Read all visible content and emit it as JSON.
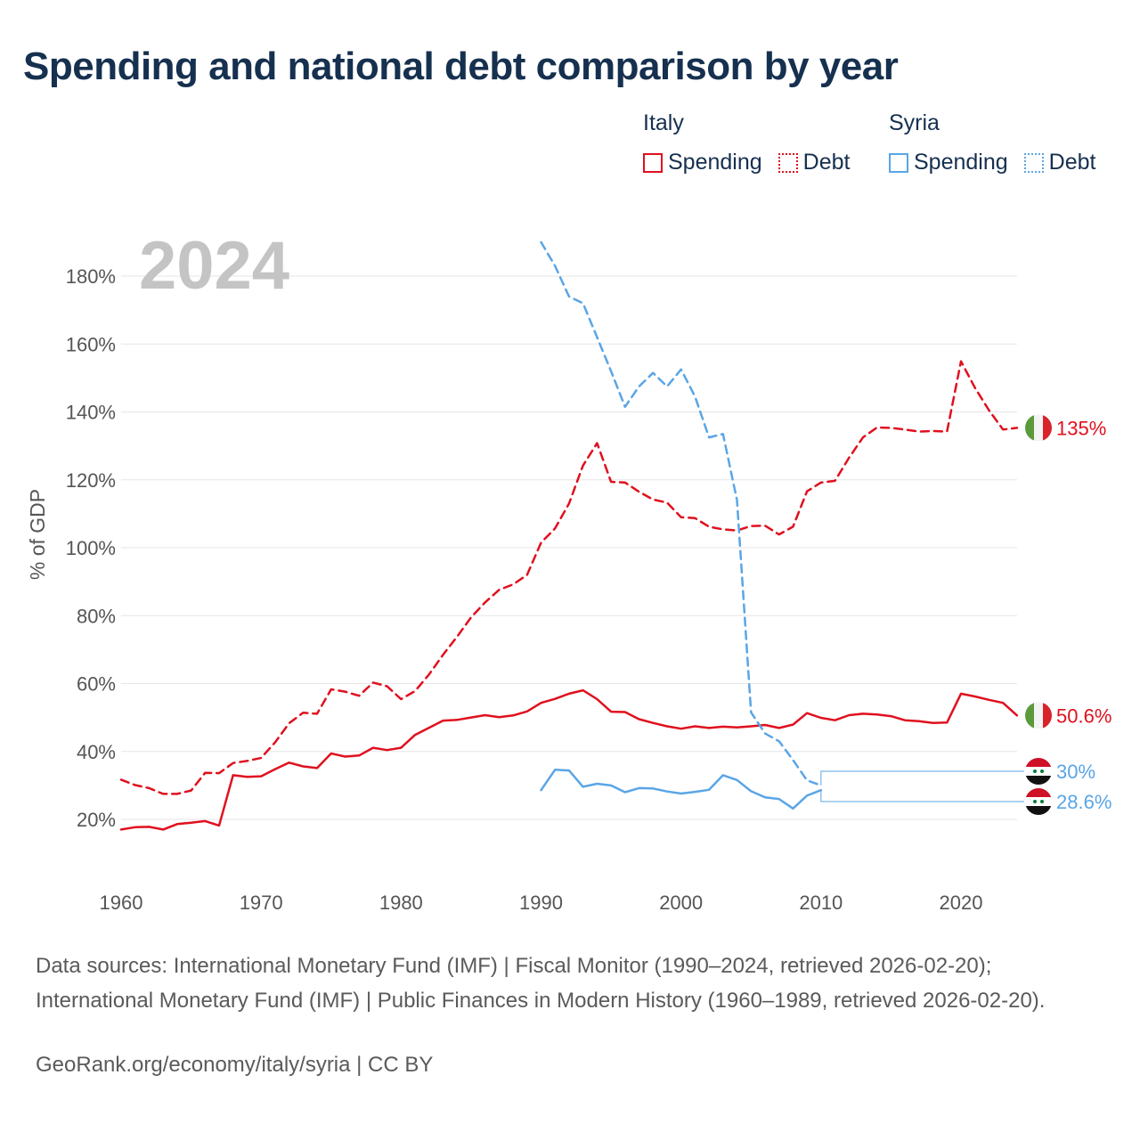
{
  "title": "Spending and national debt comparison by year",
  "legend": {
    "groups": [
      {
        "name": "Italy",
        "items": [
          {
            "label": "Spending",
            "style": "solid",
            "color": "#e0101e"
          },
          {
            "label": "Debt",
            "style": "dotted",
            "color": "#e0101e"
          }
        ]
      },
      {
        "name": "Syria",
        "items": [
          {
            "label": "Spending",
            "style": "solid",
            "color": "#5aa5e6"
          },
          {
            "label": "Debt",
            "style": "dotted",
            "color": "#5aa5e6"
          }
        ]
      }
    ]
  },
  "year_label": "2024",
  "sources": "Data sources: International Monetary Fund (IMF) | Fiscal Monitor (1990–2024, retrieved 2026-02-20); International Monetary Fund (IMF) | Public Finances in Modern History (1960–1989, retrieved 2026-02-20).",
  "credit": "GeoRank.org/economy/italy/syria | CC BY",
  "colors": {
    "italy": "#e0101e",
    "syria": "#5aa5e6",
    "title": "#16304f",
    "grid": "#e6e6e6",
    "axis_text": "#555555",
    "year_watermark": "#c4c4c4"
  },
  "chart_data": {
    "type": "line",
    "title": "Spending and national debt comparison by year",
    "xlabel": "",
    "ylabel": "% of GDP",
    "xlim": [
      1960,
      2024
    ],
    "ylim": [
      10,
      190
    ],
    "x_ticks": [
      1960,
      1970,
      1980,
      1990,
      2000,
      2010,
      2020
    ],
    "x_tick_labels": [
      "1960",
      "1970",
      "1980",
      "1990",
      "2000",
      "2010",
      "2020"
    ],
    "y_ticks": [
      20,
      40,
      60,
      80,
      100,
      120,
      140,
      160,
      180
    ],
    "y_tick_labels": [
      "20%",
      "40%",
      "60%",
      "80%",
      "100%",
      "120%",
      "140%",
      "160%",
      "180%"
    ],
    "grid": true,
    "series": [
      {
        "name": "Italy Spending",
        "country": "italy",
        "kind": "spending",
        "color": "#e0101e",
        "end_label": "50.6%",
        "x": [
          1960,
          1961,
          1962,
          1963,
          1964,
          1965,
          1966,
          1967,
          1968,
          1969,
          1970,
          1971,
          1972,
          1973,
          1974,
          1975,
          1976,
          1977,
          1978,
          1979,
          1980,
          1981,
          1982,
          1983,
          1984,
          1985,
          1986,
          1987,
          1988,
          1989,
          1990,
          1991,
          1992,
          1993,
          1994,
          1995,
          1996,
          1997,
          1998,
          1999,
          2000,
          2001,
          2002,
          2003,
          2004,
          2005,
          2006,
          2007,
          2008,
          2009,
          2010,
          2011,
          2012,
          2013,
          2014,
          2015,
          2016,
          2017,
          2018,
          2019,
          2020,
          2021,
          2022,
          2023,
          2024
        ],
        "values": [
          17,
          17.7,
          17.8,
          17,
          18.6,
          19,
          19.5,
          18.2,
          33,
          32.5,
          32.7,
          34.8,
          36.7,
          35.6,
          35.1,
          39.4,
          38.5,
          38.8,
          41.1,
          40.4,
          41.1,
          44.9,
          47,
          49.1,
          49.3,
          50,
          50.7,
          50.1,
          50.6,
          51.8,
          54.3,
          55.5,
          57,
          58,
          55.4,
          51.7,
          51.6,
          49.5,
          48.4,
          47.4,
          46.7,
          47.4,
          46.9,
          47.3,
          47.1,
          47.4,
          47.8,
          46.9,
          47.9,
          51.3,
          49.9,
          49.2,
          50.7,
          51.1,
          50.9,
          50.4,
          49.2,
          48.9,
          48.4,
          48.5,
          57,
          56.2,
          55.2,
          54.3,
          50.6
        ]
      },
      {
        "name": "Italy Debt",
        "country": "italy",
        "kind": "debt",
        "color": "#e0101e",
        "end_label": "135%",
        "x": [
          1960,
          1961,
          1962,
          1963,
          1964,
          1965,
          1966,
          1967,
          1968,
          1969,
          1970,
          1971,
          1972,
          1973,
          1974,
          1975,
          1976,
          1977,
          1978,
          1979,
          1980,
          1981,
          1982,
          1983,
          1984,
          1985,
          1986,
          1987,
          1988,
          1989,
          1990,
          1991,
          1992,
          1993,
          1994,
          1995,
          1996,
          1997,
          1998,
          1999,
          2000,
          2001,
          2002,
          2003,
          2004,
          2005,
          2006,
          2007,
          2008,
          2009,
          2010,
          2011,
          2012,
          2013,
          2014,
          2015,
          2016,
          2017,
          2018,
          2019,
          2020,
          2021,
          2022,
          2023,
          2024
        ],
        "values": [
          31.7,
          30.1,
          29.2,
          27.5,
          27.5,
          28.5,
          33.7,
          33.6,
          36.6,
          37.2,
          38.1,
          42.7,
          48.3,
          51.4,
          51.1,
          58.3,
          57.6,
          56.4,
          60.3,
          59.2,
          55.4,
          57.8,
          62.7,
          68.5,
          73.8,
          79.5,
          83.9,
          87.6,
          89.2,
          92,
          101.5,
          105.7,
          113,
          124.2,
          130.8,
          119.4,
          119.2,
          116.5,
          114.2,
          113.3,
          109,
          108.7,
          106.2,
          105.4,
          105.1,
          106.4,
          106.5,
          103.9,
          106.2,
          116.6,
          119.2,
          119.7,
          126.5,
          132.5,
          135.4,
          135.3,
          134.8,
          134.2,
          134.4,
          134.2,
          154.9,
          147.1,
          140.5,
          134.8,
          135.3
        ]
      },
      {
        "name": "Syria Spending",
        "country": "syria",
        "kind": "spending",
        "color": "#5aa5e6",
        "end_label": "28.6%",
        "x": [
          1990,
          1991,
          1992,
          1993,
          1994,
          1995,
          1996,
          1997,
          1998,
          1999,
          2000,
          2001,
          2002,
          2003,
          2004,
          2005,
          2006,
          2007,
          2008,
          2009,
          2010
        ],
        "values": [
          28.6,
          34.6,
          34.4,
          29.6,
          30.5,
          30,
          28,
          29.2,
          29.1,
          28.2,
          27.6,
          28.1,
          28.7,
          33,
          31.6,
          28.3,
          26.5,
          26,
          23.2,
          27,
          28.6
        ]
      },
      {
        "name": "Syria Debt",
        "country": "syria",
        "kind": "debt",
        "color": "#5aa5e6",
        "end_label": "30%",
        "x": [
          1990,
          1991,
          1992,
          1993,
          1994,
          1995,
          1996,
          1997,
          1998,
          1999,
          2000,
          2001,
          2002,
          2003,
          2004,
          2005,
          2006,
          2007,
          2008,
          2009,
          2010
        ],
        "values": [
          190,
          183,
          174,
          172,
          162,
          152,
          141.5,
          147.5,
          151.5,
          147.5,
          152.5,
          144.5,
          132.5,
          133.5,
          114,
          51.5,
          45.3,
          43,
          37.5,
          31.5,
          30
        ]
      }
    ]
  }
}
